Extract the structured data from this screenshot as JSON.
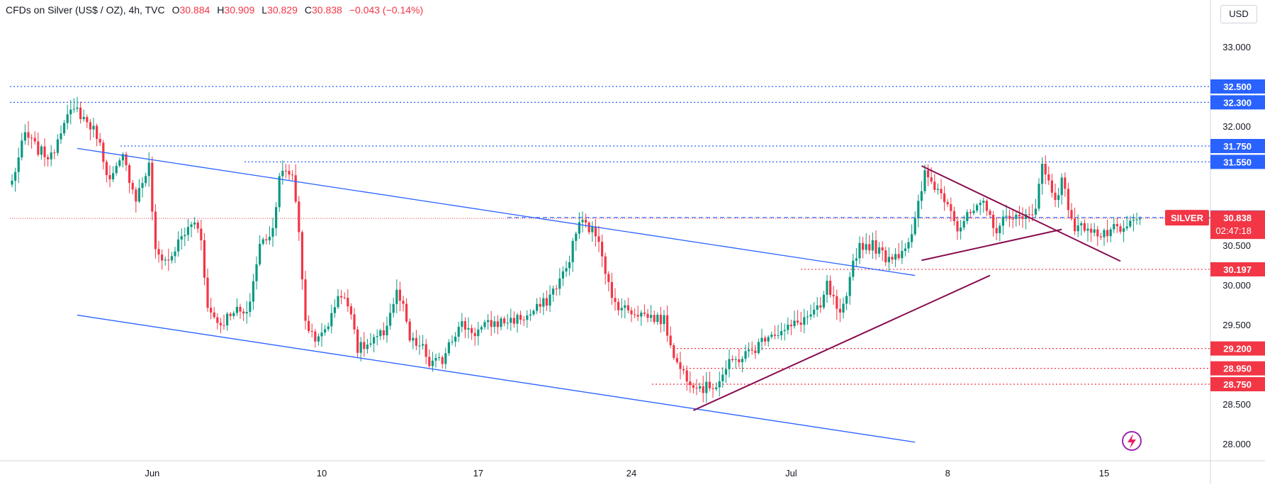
{
  "header": {
    "symbol": "CFDs on Silver (US$ / OZ), 4h, TVC",
    "open_label": "O",
    "open": "30.884",
    "high_label": "H",
    "high": "30.909",
    "low_label": "L",
    "low": "30.829",
    "close_label": "C",
    "close": "30.838",
    "change": "−0.043 (−0.14%)"
  },
  "currency_button": "USD",
  "price_tag": {
    "symbol": "SILVER",
    "price": "30.838",
    "countdown": "02:47:18"
  },
  "colors": {
    "up": "#089981",
    "down": "#f23645",
    "channel": "#2962ff",
    "triangle": "#880e4f",
    "resistance": "#2962ff",
    "support": "#f23645",
    "tag_blue": "#2962ff",
    "tag_red": "#f23645"
  },
  "icons": {
    "bottom_right": "lightning-logo-icon"
  },
  "chart_data": {
    "type": "candlestick",
    "title": "CFDs on Silver (US$ / OZ), 4h, TVC",
    "ylim": [
      27.9,
      33.3
    ],
    "yticks": [
      "33.000",
      "32.000",
      "30.500",
      "30.000",
      "29.500",
      "28.500",
      "28.000"
    ],
    "xticks": [
      {
        "label": "Jun",
        "bar": 43
      },
      {
        "label": "10",
        "bar": 95
      },
      {
        "label": "17",
        "bar": 143
      },
      {
        "label": "24",
        "bar": 190
      },
      {
        "label": "Jul",
        "bar": 239
      },
      {
        "label": "8",
        "bar": 287
      },
      {
        "label": "15",
        "bar": 335
      }
    ],
    "bar_count": 350,
    "horizontal_levels": [
      {
        "label": "32.500",
        "value": 32.5,
        "style": "resistance"
      },
      {
        "label": "32.300",
        "value": 32.3,
        "style": "resistance"
      },
      {
        "label": "31.750",
        "value": 31.75,
        "style": "resistance"
      },
      {
        "label": "31.550",
        "value": 31.55,
        "style": "resistance"
      },
      {
        "label": "30.850",
        "value": 30.85,
        "style": "dashed"
      },
      {
        "label": "30.197",
        "value": 30.197,
        "style": "support"
      },
      {
        "label": "29.200",
        "value": 29.2,
        "style": "support"
      },
      {
        "label": "28.950",
        "value": 28.95,
        "style": "support"
      },
      {
        "label": "28.750",
        "value": 28.75,
        "style": "support"
      }
    ],
    "trendlines": [
      {
        "kind": "channel-upper",
        "from": {
          "bar": 20,
          "price": 31.72
        },
        "to": {
          "bar": 277,
          "price": 30.12
        }
      },
      {
        "kind": "channel-lower",
        "from": {
          "bar": 20,
          "price": 29.62
        },
        "to": {
          "bar": 277,
          "price": 28.02
        }
      },
      {
        "kind": "support-rising",
        "from": {
          "bar": 209,
          "price": 28.42
        },
        "to": {
          "bar": 300,
          "price": 30.12
        }
      },
      {
        "kind": "triangle-upper",
        "from": {
          "bar": 279,
          "price": 31.5
        },
        "to": {
          "bar": 340,
          "price": 30.3
        }
      },
      {
        "kind": "triangle-lower",
        "from": {
          "bar": 279,
          "price": 30.31
        },
        "to": {
          "bar": 322,
          "price": 30.7
        }
      }
    ],
    "waypoints": [
      [
        0,
        31.3
      ],
      [
        4,
        31.9
      ],
      [
        8,
        31.7
      ],
      [
        12,
        31.6
      ],
      [
        16,
        32.1
      ],
      [
        20,
        32.2
      ],
      [
        24,
        32.0
      ],
      [
        26,
        31.9
      ],
      [
        30,
        31.3
      ],
      [
        34,
        31.6
      ],
      [
        38,
        31.1
      ],
      [
        42,
        31.5
      ],
      [
        44,
        30.4
      ],
      [
        48,
        30.3
      ],
      [
        52,
        30.6
      ],
      [
        56,
        30.8
      ],
      [
        58,
        30.6
      ],
      [
        60,
        29.7
      ],
      [
        64,
        29.5
      ],
      [
        68,
        29.7
      ],
      [
        72,
        29.6
      ],
      [
        76,
        30.5
      ],
      [
        80,
        30.7
      ],
      [
        82,
        31.4
      ],
      [
        86,
        31.4
      ],
      [
        88,
        30.7
      ],
      [
        90,
        29.5
      ],
      [
        94,
        29.3
      ],
      [
        98,
        29.6
      ],
      [
        100,
        29.9
      ],
      [
        104,
        29.7
      ],
      [
        106,
        29.2
      ],
      [
        110,
        29.25
      ],
      [
        114,
        29.4
      ],
      [
        118,
        29.9
      ],
      [
        120,
        29.7
      ],
      [
        122,
        29.3
      ],
      [
        126,
        29.2
      ],
      [
        128,
        29.0
      ],
      [
        132,
        29.05
      ],
      [
        134,
        29.3
      ],
      [
        138,
        29.5
      ],
      [
        142,
        29.4
      ],
      [
        146,
        29.5
      ],
      [
        152,
        29.55
      ],
      [
        158,
        29.6
      ],
      [
        164,
        29.8
      ],
      [
        170,
        30.2
      ],
      [
        174,
        30.8
      ],
      [
        176,
        30.75
      ],
      [
        180,
        30.6
      ],
      [
        184,
        29.8
      ],
      [
        188,
        29.7
      ],
      [
        192,
        29.65
      ],
      [
        196,
        29.6
      ],
      [
        200,
        29.55
      ],
      [
        204,
        29.0
      ],
      [
        208,
        28.8
      ],
      [
        212,
        28.7
      ],
      [
        216,
        28.75
      ],
      [
        220,
        29.0
      ],
      [
        224,
        29.1
      ],
      [
        228,
        29.2
      ],
      [
        232,
        29.4
      ],
      [
        236,
        29.4
      ],
      [
        240,
        29.5
      ],
      [
        244,
        29.6
      ],
      [
        248,
        29.7
      ],
      [
        250,
        30.0
      ],
      [
        254,
        29.6
      ],
      [
        256,
        29.8
      ],
      [
        258,
        30.3
      ],
      [
        260,
        30.5
      ],
      [
        264,
        30.5
      ],
      [
        268,
        30.35
      ],
      [
        272,
        30.4
      ],
      [
        276,
        30.6
      ],
      [
        280,
        31.4
      ],
      [
        284,
        31.2
      ],
      [
        288,
        31.0
      ],
      [
        290,
        30.7
      ],
      [
        294,
        30.9
      ],
      [
        298,
        31.0
      ],
      [
        302,
        30.7
      ],
      [
        306,
        30.9
      ],
      [
        310,
        30.8
      ],
      [
        314,
        31.0
      ],
      [
        316,
        31.5
      ],
      [
        320,
        31.1
      ],
      [
        322,
        31.3
      ],
      [
        324,
        31.0
      ],
      [
        326,
        30.7
      ],
      [
        330,
        30.75
      ],
      [
        334,
        30.6
      ],
      [
        338,
        30.7
      ],
      [
        340,
        30.65
      ],
      [
        344,
        30.8
      ],
      [
        346,
        30.838
      ]
    ]
  }
}
